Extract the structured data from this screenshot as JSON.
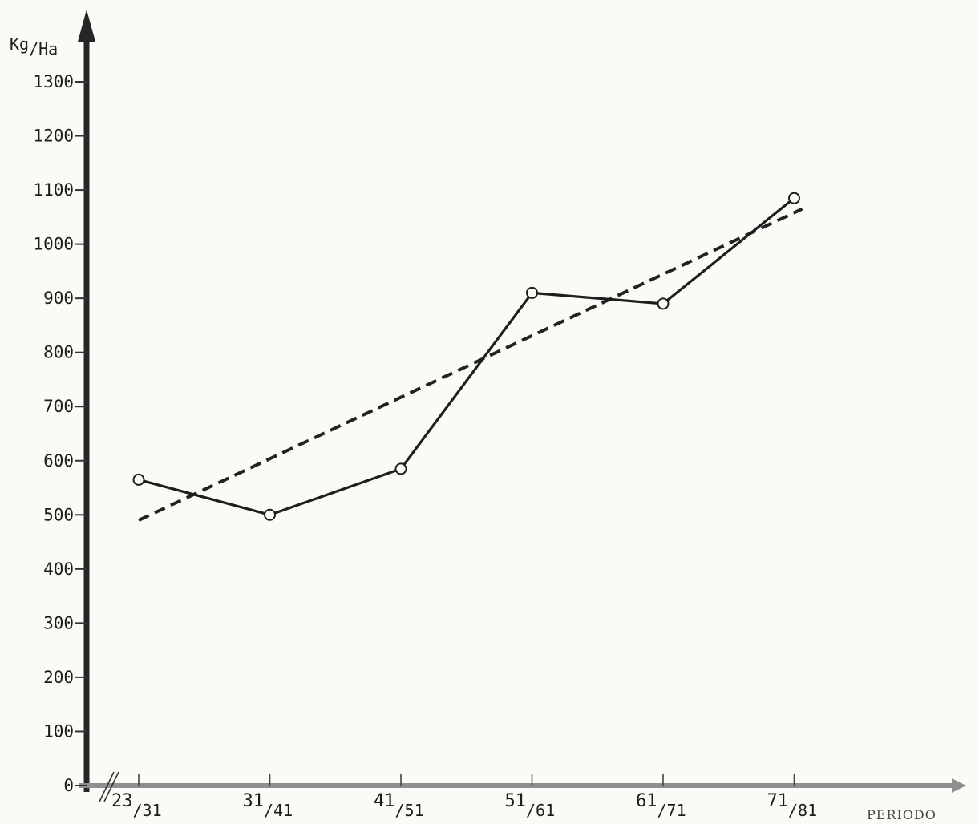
{
  "chart_data": {
    "type": "line",
    "ylabel_main": "Kg",
    "ylabel_sub": "/Ha",
    "xlabel": "PERIODO",
    "ylim": [
      0,
      1300
    ],
    "yticks": [
      0,
      100,
      200,
      300,
      400,
      500,
      600,
      700,
      800,
      900,
      1000,
      1100,
      1200,
      1300
    ],
    "yticks_text": [
      "0",
      "100",
      "200",
      "300",
      "400",
      "500",
      "600",
      "700",
      "800",
      "900",
      "1000",
      "1100",
      "1200",
      "1300"
    ],
    "categories": [
      {
        "label": "23/31",
        "main": "23",
        "sub": "/31"
      },
      {
        "label": "31/41",
        "main": "31",
        "sub": "/41"
      },
      {
        "label": "41/51",
        "main": "41",
        "sub": "/51"
      },
      {
        "label": "51/61",
        "main": "51",
        "sub": "/61"
      },
      {
        "label": "61/71",
        "main": "61",
        "sub": "/71"
      },
      {
        "label": "71/81",
        "main": "71",
        "sub": "/81"
      }
    ],
    "series": [
      {
        "style": "solid",
        "values": [
          565,
          500,
          585,
          910,
          890,
          1085
        ]
      }
    ],
    "trend": {
      "style": "dashed",
      "start": 490,
      "end": 1065
    },
    "grid": false,
    "legend": "none"
  }
}
